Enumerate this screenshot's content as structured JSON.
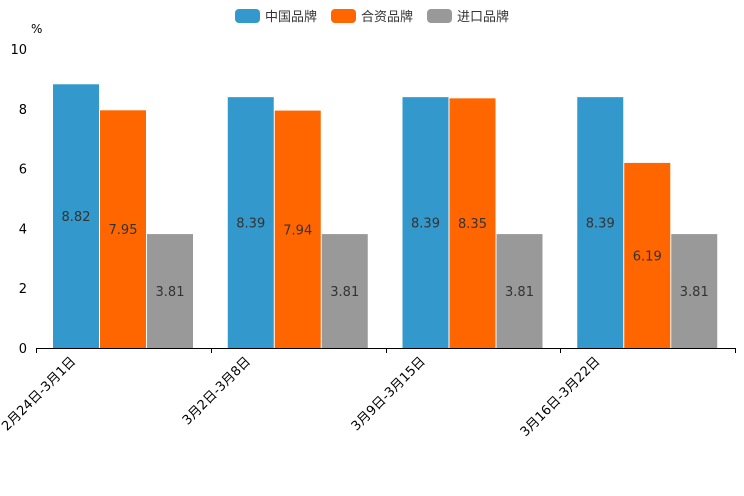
{
  "chart_data": {
    "type": "bar",
    "title": "",
    "xlabel": "",
    "ylabel": "%",
    "ylim": [
      0,
      10
    ],
    "yticks": [
      0,
      2,
      4,
      6,
      8,
      10
    ],
    "grid": false,
    "legend_position": "top-center",
    "categories": [
      "2月24日-3月1日",
      "3月2日-3月8日",
      "3月9日-3月15日",
      "3月16日-3月22日"
    ],
    "series": [
      {
        "name": "中国品牌",
        "color": "#3399CC",
        "values": [
          8.82,
          8.39,
          8.39,
          8.39
        ],
        "labels": [
          "8.82",
          "8.39",
          "8.39",
          "8.39"
        ]
      },
      {
        "name": "合资品牌",
        "color": "#FF6600",
        "values": [
          7.95,
          7.94,
          8.35,
          6.19
        ],
        "labels": [
          "7.95",
          "7.94",
          "8.35",
          "6.19"
        ]
      },
      {
        "name": "进口品牌",
        "color": "#999999",
        "values": [
          3.81,
          3.81,
          3.81,
          3.81
        ],
        "labels": [
          "3.81",
          "3.81",
          "3.81",
          "3.81"
        ]
      }
    ]
  }
}
